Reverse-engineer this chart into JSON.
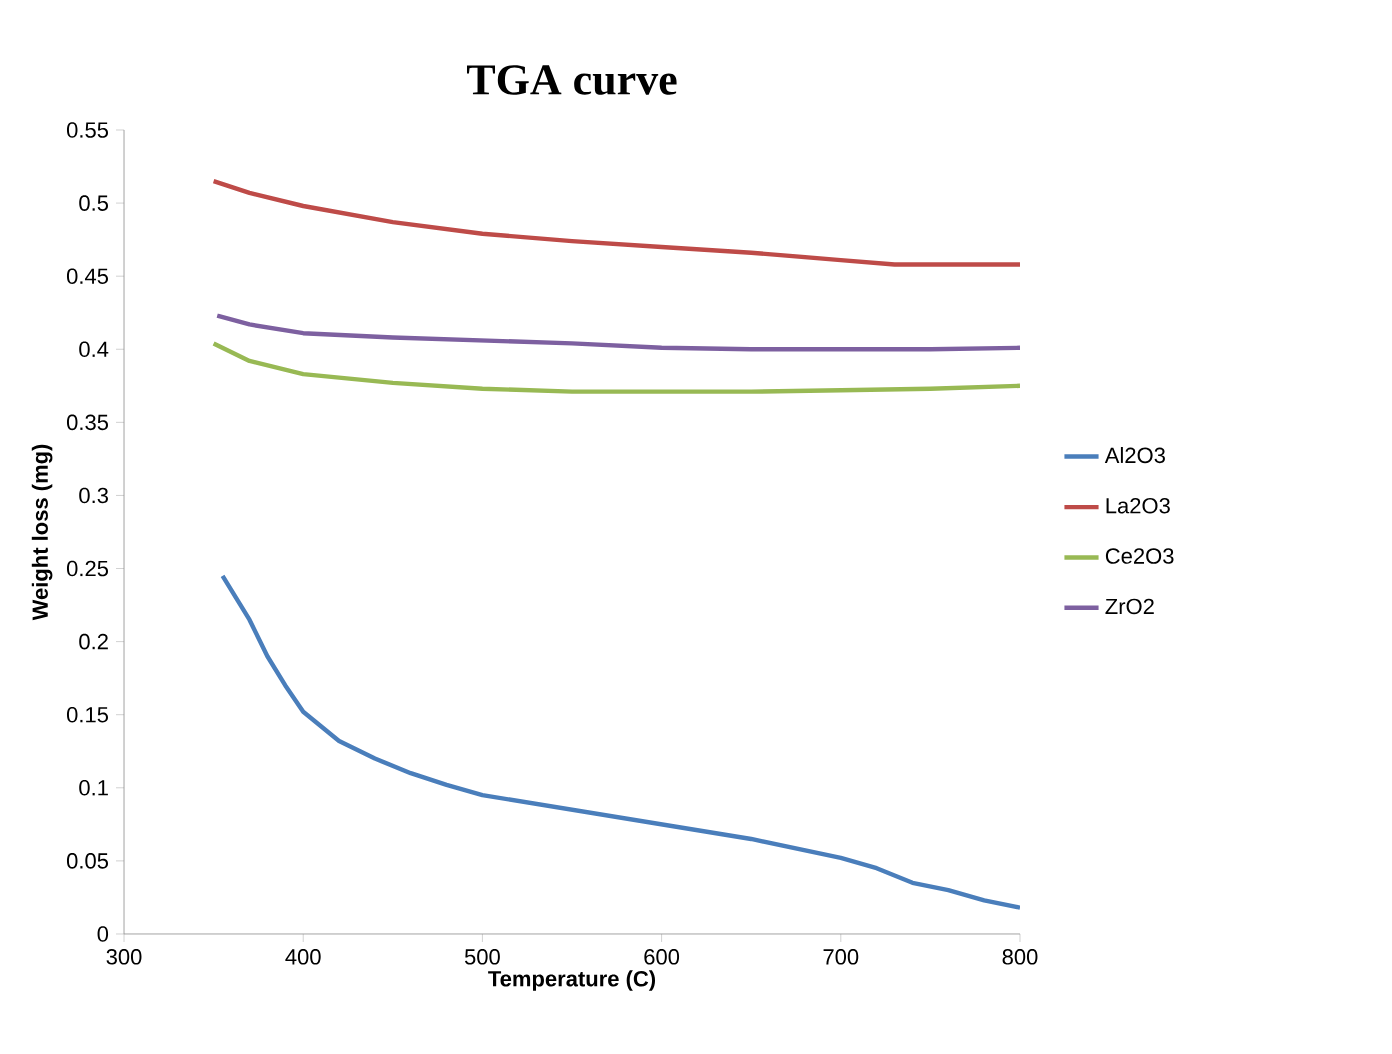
{
  "chart_data": {
    "type": "line",
    "title": "TGA curve",
    "xlabel": "Temperature (C)",
    "ylabel": "Weight loss (mg)",
    "xlim": [
      300,
      800
    ],
    "xticks": [
      300,
      400,
      500,
      600,
      700,
      800
    ],
    "ylim": [
      0,
      0.55
    ],
    "yticks": [
      0,
      0.05,
      0.1,
      0.15,
      0.2,
      0.25,
      0.3,
      0.35,
      0.4,
      0.45,
      0.5,
      0.55
    ],
    "grid": false,
    "legend": "right",
    "marker": "none",
    "line_style": "solid",
    "series": [
      {
        "name": "Al2O3",
        "color": "#4a7ebb",
        "x": [
          355,
          370,
          380,
          390,
          400,
          420,
          440,
          460,
          480,
          500,
          550,
          600,
          650,
          700,
          720,
          740,
          760,
          780,
          800
        ],
        "values": [
          0.245,
          0.215,
          0.19,
          0.17,
          0.152,
          0.132,
          0.12,
          0.11,
          0.102,
          0.095,
          0.085,
          0.075,
          0.065,
          0.052,
          0.045,
          0.035,
          0.03,
          0.023,
          0.018
        ]
      },
      {
        "name": "La2O3",
        "color": "#be4b48",
        "x": [
          350,
          370,
          400,
          450,
          500,
          550,
          600,
          650,
          700,
          730,
          800
        ],
        "values": [
          0.515,
          0.507,
          0.498,
          0.487,
          0.479,
          0.474,
          0.47,
          0.466,
          0.461,
          0.458,
          0.458
        ]
      },
      {
        "name": "Ce2O3",
        "color": "#98b954",
        "x": [
          350,
          370,
          400,
          450,
          500,
          550,
          600,
          650,
          700,
          750,
          800
        ],
        "values": [
          0.404,
          0.392,
          0.383,
          0.377,
          0.373,
          0.371,
          0.371,
          0.371,
          0.372,
          0.373,
          0.375
        ]
      },
      {
        "name": "ZrO2",
        "color": "#7d60a0",
        "x": [
          352,
          370,
          400,
          450,
          500,
          550,
          600,
          650,
          700,
          750,
          800
        ],
        "values": [
          0.423,
          0.417,
          0.411,
          0.408,
          0.406,
          0.404,
          0.401,
          0.4,
          0.4,
          0.4,
          0.401
        ]
      }
    ]
  }
}
